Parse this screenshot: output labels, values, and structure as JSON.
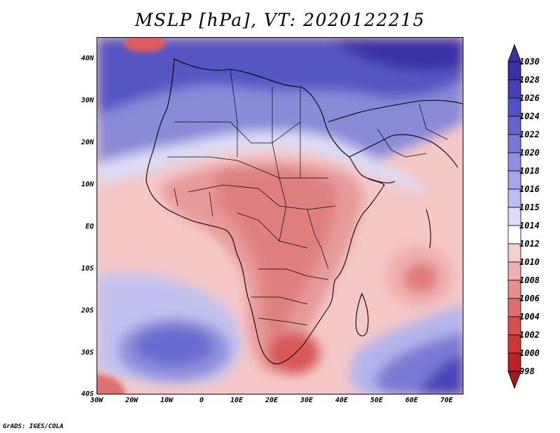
{
  "title": "MSLP [hPa], VT: 2020122215",
  "credit": "GrADS: IGES/COLA",
  "map": {
    "y_ticks": [
      "40N",
      "30N",
      "20N",
      "10N",
      "EQ",
      "10S",
      "20S",
      "30S",
      "40S"
    ],
    "x_ticks": [
      "30W",
      "20W",
      "10W",
      "0",
      "10E",
      "20E",
      "30E",
      "40E",
      "50E",
      "60E",
      "70E"
    ]
  },
  "colorbar": {
    "levels": [
      "1030",
      "1028",
      "1026",
      "1024",
      "1022",
      "1020",
      "1018",
      "1016",
      "1015",
      "1014",
      "1012",
      "1010",
      "1008",
      "1006",
      "1004",
      "1002",
      "1000",
      "998"
    ],
    "colors": [
      "#3a2fa6",
      "#4640b6",
      "#5352c2",
      "#6464cc",
      "#7878d6",
      "#8e8ee0",
      "#a6a6ea",
      "#bdbdf2",
      "#dcdcf8",
      "#ffffff",
      "#f6d0d0",
      "#f0b0b0",
      "#e68f8f",
      "#de6e6e",
      "#d65050",
      "#cc3838",
      "#b82424"
    ]
  }
}
